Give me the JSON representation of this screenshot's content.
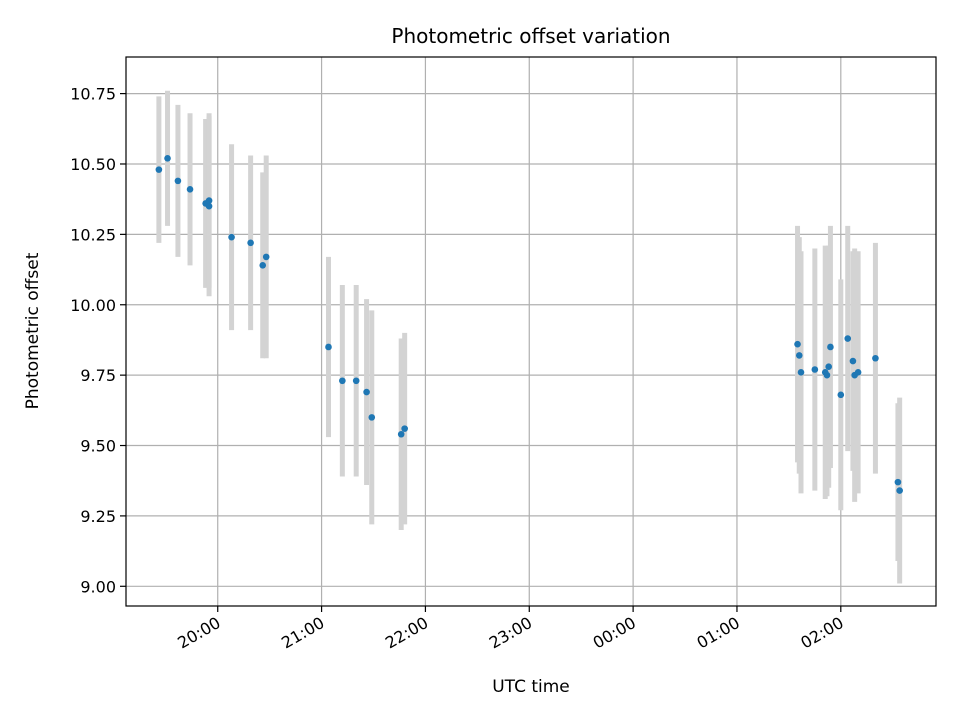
{
  "chart_data": {
    "type": "scatter",
    "title": "Photometric offset variation",
    "xlabel": "UTC time",
    "ylabel": "Photometric offset",
    "x_tick_labels": [
      "20:00",
      "21:00",
      "22:00",
      "23:00",
      "00:00",
      "01:00",
      "02:00"
    ],
    "x_ticks": [
      "20:00",
      "21:00",
      "22:00",
      "23:00",
      "24:00",
      "25:00",
      "26:00"
    ],
    "y_ticks": [
      9.0,
      9.25,
      9.5,
      9.75,
      10.0,
      10.25,
      10.5,
      10.75
    ],
    "y_tick_labels": [
      "9.00",
      "9.25",
      "9.50",
      "9.75",
      "10.00",
      "10.25",
      "10.50",
      "10.75"
    ],
    "xlim": [
      "19:07",
      "26:55"
    ],
    "ylim": [
      8.93,
      10.88
    ],
    "grid": true,
    "marker_color": "#1f77b4",
    "errorbar_color": "#d3d3d3",
    "series": [
      {
        "points": [
          {
            "x": "19:26",
            "y": 10.48,
            "err": 0.26
          },
          {
            "x": "19:31",
            "y": 10.52,
            "err": 0.24
          },
          {
            "x": "19:37",
            "y": 10.44,
            "err": 0.27
          },
          {
            "x": "19:44",
            "y": 10.41,
            "err": 0.27
          },
          {
            "x": "19:53",
            "y": 10.36,
            "err": 0.3
          },
          {
            "x": "19:55",
            "y": 10.37,
            "err": 0.31
          },
          {
            "x": "19:55",
            "y": 10.35,
            "err": 0.32
          },
          {
            "x": "20:08",
            "y": 10.24,
            "err": 0.33
          },
          {
            "x": "20:19",
            "y": 10.22,
            "err": 0.31
          },
          {
            "x": "20:26",
            "y": 10.14,
            "err": 0.33
          },
          {
            "x": "20:28",
            "y": 10.17,
            "err": 0.36
          },
          {
            "x": "21:04",
            "y": 9.85,
            "err": 0.32
          },
          {
            "x": "21:12",
            "y": 9.73,
            "err": 0.34
          },
          {
            "x": "21:20",
            "y": 9.73,
            "err": 0.34
          },
          {
            "x": "21:26",
            "y": 9.69,
            "err": 0.33
          },
          {
            "x": "21:29",
            "y": 9.6,
            "err": 0.38
          },
          {
            "x": "21:46",
            "y": 9.54,
            "err": 0.34
          },
          {
            "x": "21:48",
            "y": 9.56,
            "err": 0.34
          },
          {
            "x": "01:35",
            "y": 9.86,
            "err": 0.42
          },
          {
            "x": "01:36",
            "y": 9.82,
            "err": 0.42
          },
          {
            "x": "01:37",
            "y": 9.76,
            "err": 0.43
          },
          {
            "x": "01:45",
            "y": 9.77,
            "err": 0.43
          },
          {
            "x": "01:51",
            "y": 9.76,
            "err": 0.45
          },
          {
            "x": "01:52",
            "y": 9.75,
            "err": 0.43
          },
          {
            "x": "01:53",
            "y": 9.78,
            "err": 0.43
          },
          {
            "x": "01:54",
            "y": 9.85,
            "err": 0.43
          },
          {
            "x": "02:00",
            "y": 9.68,
            "err": 0.41
          },
          {
            "x": "02:04",
            "y": 9.88,
            "err": 0.4
          },
          {
            "x": "02:07",
            "y": 9.8,
            "err": 0.39
          },
          {
            "x": "02:08",
            "y": 9.75,
            "err": 0.45
          },
          {
            "x": "02:10",
            "y": 9.76,
            "err": 0.43
          },
          {
            "x": "02:20",
            "y": 9.81,
            "err": 0.41
          },
          {
            "x": "02:33",
            "y": 9.37,
            "err": 0.28
          },
          {
            "x": "02:34",
            "y": 9.34,
            "err": 0.33
          }
        ]
      }
    ]
  }
}
